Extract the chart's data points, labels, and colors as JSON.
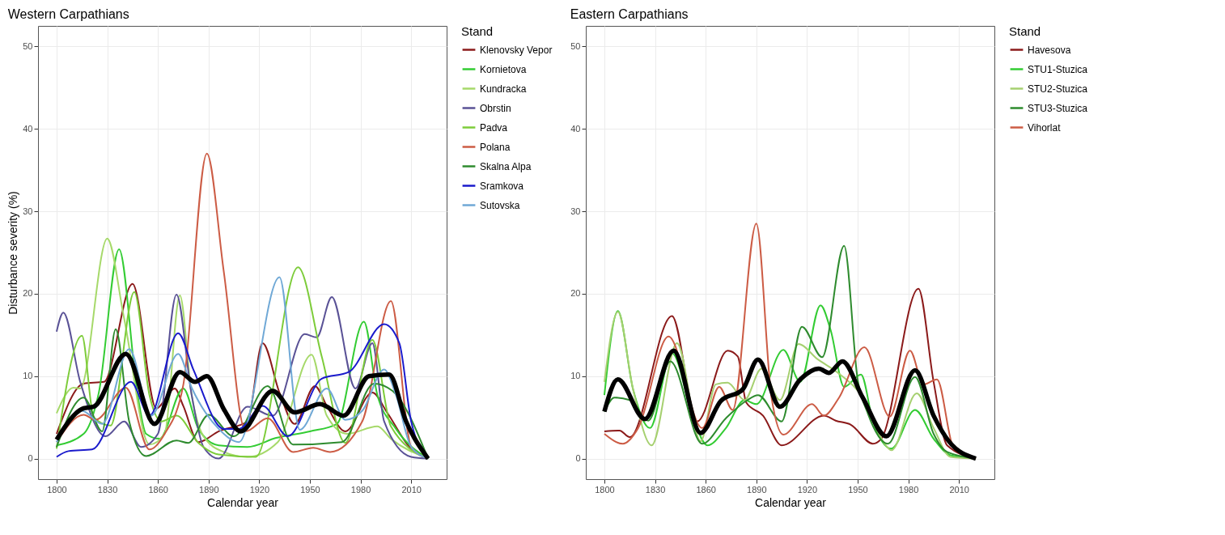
{
  "chart_data": [
    {
      "type": "line",
      "title": "Western Carpathians",
      "xlabel": "Calendar year",
      "ylabel": "Disturbance severity (%)",
      "legend_title": "Stand",
      "legend": "right",
      "grid": true,
      "xlim": [
        1789,
        2031
      ],
      "ylim": [
        -2.5,
        52.5
      ],
      "xticks": [
        1800,
        1830,
        1860,
        1890,
        1920,
        1950,
        1980,
        2010
      ],
      "yticks": [
        0,
        10,
        20,
        30,
        40,
        50
      ],
      "series": [
        {
          "name": "Klenovsky Vepor",
          "color": "#8b1a1a",
          "x": [
            1800,
            1816,
            1828,
            1845,
            1859,
            1870,
            1875,
            1884,
            1896,
            1913,
            1922,
            1932,
            1941,
            1953,
            1960,
            1971,
            1987,
            1996,
            2009,
            2020
          ],
          "values": [
            3,
            9.1,
            9.3,
            21.2,
            6.1,
            8.5,
            6.4,
            2,
            3.3,
            4.5,
            14,
            8,
            4.2,
            8.8,
            6.4,
            3.3,
            8,
            5.5,
            1.4,
            0
          ]
        },
        {
          "name": "Kornietova",
          "color": "#33cc33",
          "x": [
            1800,
            1816,
            1825,
            1837,
            1848,
            1853,
            1861,
            1875,
            1884,
            1896,
            1913,
            1930,
            1950,
            1966,
            1982,
            1990,
            2001,
            2020
          ],
          "values": [
            1.6,
            3,
            8,
            25.4,
            7.7,
            3,
            2.4,
            8.5,
            3.6,
            1.6,
            1.4,
            2.5,
            3.3,
            4.2,
            16.6,
            7.7,
            3.6,
            0
          ]
        },
        {
          "name": "Kundracka",
          "color": "#a6d96a",
          "x": [
            1800,
            1810,
            1814,
            1830,
            1840,
            1855,
            1864,
            1873,
            1880,
            1887,
            1899,
            1913,
            1931,
            1951,
            1960,
            1972,
            1990,
            1998,
            2020
          ],
          "values": [
            5.5,
            8.6,
            8.5,
            26.7,
            17,
            1.7,
            3,
            19.8,
            7.7,
            2.7,
            0.8,
            0.2,
            2,
            12.6,
            5.2,
            3,
            3.9,
            2.4,
            0
          ]
        },
        {
          "name": "Obrstin",
          "color": "#5a5296",
          "x": [
            1800,
            1804,
            1814,
            1829,
            1840,
            1850,
            1860,
            1871,
            1880,
            1887,
            1896,
            1913,
            1928,
            1947,
            1954,
            1963,
            1977,
            1987,
            1994,
            2010,
            2020
          ],
          "values": [
            15.4,
            17.7,
            9.3,
            2.7,
            4.5,
            1.4,
            3,
            19.9,
            7.7,
            1.4,
            0,
            6.3,
            5.2,
            15.1,
            14.7,
            19.6,
            8.5,
            14,
            4.5,
            0.2,
            0
          ]
        },
        {
          "name": "Padva",
          "color": "#7dcc3a",
          "x": [
            1800,
            1815,
            1822,
            1832,
            1846,
            1855,
            1862,
            1871,
            1884,
            1896,
            1918,
            1943,
            1957,
            1971,
            1987,
            1998,
            2020
          ],
          "values": [
            1.2,
            14.9,
            5,
            4,
            20.2,
            7.7,
            4.5,
            5.2,
            1.9,
            0.5,
            0.2,
            23.2,
            12.4,
            1.9,
            14.4,
            3.9,
            0
          ]
        },
        {
          "name": "Polana",
          "color": "#cc5c45",
          "x": [
            1800,
            1816,
            1823,
            1841,
            1855,
            1864,
            1875,
            1889,
            1899,
            1912,
            1925,
            1940,
            1952,
            1962,
            1981,
            1998,
            2010,
            2020
          ],
          "values": [
            2,
            5.3,
            4.7,
            8.6,
            1.1,
            3,
            8.9,
            37,
            22.7,
            3.3,
            4.9,
            0.8,
            1.3,
            0.8,
            4.5,
            19.1,
            1.4,
            0
          ]
        },
        {
          "name": "Skalna Alpa",
          "color": "#2e8b2e",
          "x": [
            1800,
            1816,
            1827,
            1835,
            1843,
            1853,
            1871,
            1878,
            1890,
            1905,
            1925,
            1940,
            1969,
            1988,
            1999,
            2020
          ],
          "values": [
            1.4,
            7.4,
            3.3,
            15.7,
            4.5,
            0.3,
            2.2,
            1.9,
            5.3,
            2.7,
            8.8,
            1.7,
            2,
            9.1,
            8.2,
            0
          ]
        },
        {
          "name": "Sramkova",
          "color": "#1a1acc",
          "x": [
            1800,
            1807,
            1821,
            1844,
            1855,
            1872,
            1881,
            1899,
            1908,
            1922,
            1937,
            1957,
            1973,
            1994,
            2003,
            2010,
            2020
          ],
          "values": [
            0.2,
            0.9,
            1.1,
            9.3,
            5.2,
            15.2,
            10.8,
            3.6,
            3.6,
            6.4,
            2.7,
            9.7,
            10.5,
            16.3,
            14,
            4.5,
            0
          ]
        },
        {
          "name": "Sutovska",
          "color": "#6fa8d6",
          "x": [
            1800,
            1815,
            1827,
            1843,
            1856,
            1872,
            1880,
            1896,
            1908,
            1932,
            1944,
            1960,
            1971,
            1981,
            1994,
            2001,
            2010,
            2020
          ],
          "values": [
            2,
            5.8,
            4.2,
            13.3,
            5.2,
            12.7,
            8.6,
            3.6,
            2,
            22,
            3.5,
            8.5,
            4.7,
            5.8,
            10.8,
            7.7,
            1.4,
            0
          ]
        },
        {
          "color": "#000000",
          "x": [
            1800,
            1816,
            1822,
            1841,
            1858,
            1873,
            1882,
            1889,
            1899,
            1909,
            1928,
            1941,
            1956,
            1970,
            1985,
            1997,
            2007,
            2020
          ],
          "values": [
            2.3,
            6.1,
            6.3,
            12.7,
            4.2,
            10.5,
            9.3,
            10,
            6,
            3.3,
            8.2,
            5.6,
            6.6,
            5.2,
            10,
            10.2,
            4.5,
            0
          ]
        }
      ]
    },
    {
      "type": "line",
      "title": "Eastern Carpathians",
      "xlabel": "Calendar year",
      "legend_title": "Stand",
      "legend": "right",
      "grid": true,
      "xlim": [
        1789,
        2031
      ],
      "ylim": [
        -2.5,
        52.5
      ],
      "xticks": [
        1800,
        1830,
        1860,
        1890,
        1920,
        1950,
        1980,
        2010
      ],
      "yticks": [
        0,
        10,
        20,
        30,
        40,
        50
      ],
      "series": [
        {
          "name": "Havesova",
          "color": "#8b1a1a",
          "x": [
            1800,
            1809,
            1815,
            1840,
            1855,
            1873,
            1879,
            1884,
            1894,
            1905,
            1930,
            1937,
            1946,
            1959,
            1964,
            1986,
            1995,
            2003,
            2020
          ],
          "values": [
            3.3,
            3.4,
            2.6,
            17.3,
            4.5,
            13.1,
            12.4,
            6.8,
            5.2,
            1.6,
            5.2,
            4.6,
            4.1,
            1.8,
            2.4,
            20.6,
            9.3,
            1.6,
            0
          ]
        },
        {
          "name": "STU1-Stuzica",
          "color": "#33cc33",
          "x": [
            1800,
            1808,
            1817,
            1827,
            1840,
            1853,
            1861,
            1872,
            1883,
            1890,
            1906,
            1916,
            1928,
            1934,
            1942,
            1952,
            1959,
            1970,
            1984,
            1995,
            2005,
            2020
          ],
          "values": [
            7.7,
            17.9,
            8.4,
            3.7,
            12.8,
            4.6,
            1.6,
            3.7,
            7.1,
            6.6,
            13.2,
            9.3,
            18.6,
            15.6,
            8.7,
            10.2,
            4.6,
            1.2,
            5.9,
            2.4,
            0.4,
            0
          ]
        },
        {
          "name": "STU2-Stuzica",
          "color": "#a6d070",
          "x": [
            1800,
            1808,
            1817,
            1828,
            1843,
            1857,
            1866,
            1873,
            1883,
            1893,
            1904,
            1915,
            1926,
            1939,
            1953,
            1966,
            1970,
            1985,
            1995,
            2005,
            2020
          ],
          "values": [
            9.3,
            17.8,
            8.4,
            1.6,
            14,
            2.1,
            9,
            9.2,
            7.1,
            10.9,
            7.1,
            13.9,
            12.1,
            10.3,
            7.4,
            1.8,
            1,
            7.9,
            3.7,
            0.2,
            0
          ]
        },
        {
          "name": "STU3-Stuzica",
          "color": "#2e8b2e",
          "x": [
            1800,
            1806,
            1815,
            1826,
            1839,
            1858,
            1872,
            1884,
            1891,
            1905,
            1917,
            1929,
            1942,
            1950,
            1956,
            1968,
            1984,
            1995,
            2003,
            2020
          ],
          "values": [
            5.7,
            7.4,
            7.1,
            4.6,
            11.8,
            1.8,
            4.9,
            7,
            7.7,
            4.5,
            16,
            12.3,
            25.8,
            9.6,
            5.5,
            1.8,
            9.9,
            3,
            0.8,
            0
          ]
        },
        {
          "name": "Vihorlat",
          "color": "#cc5c45",
          "x": [
            1800,
            1811,
            1820,
            1838,
            1858,
            1868,
            1876,
            1890,
            1899,
            1906,
            1923,
            1930,
            1939,
            1954,
            1969,
            1981,
            1989,
            1997,
            2007,
            2020
          ],
          "values": [
            3,
            1.8,
            3.7,
            14.8,
            3.7,
            8.7,
            5.9,
            28.5,
            7.4,
            2.9,
            6.6,
            5.2,
            7.4,
            13.5,
            5.1,
            13.1,
            9,
            9.6,
            1.2,
            0
          ]
        },
        {
          "color": "#000000",
          "x": [
            1800,
            1808,
            1824,
            1841,
            1857,
            1869,
            1882,
            1891,
            1904,
            1916,
            1927,
            1933,
            1941,
            1953,
            1967,
            1984,
            1995,
            2004,
            2020
          ],
          "values": [
            5.7,
            9.6,
            4.8,
            13.1,
            3.1,
            7,
            8.4,
            12,
            6.3,
            9.6,
            10.9,
            10.4,
            11.8,
            7.4,
            2.7,
            10.7,
            5.2,
            2.1,
            0
          ]
        }
      ]
    }
  ]
}
